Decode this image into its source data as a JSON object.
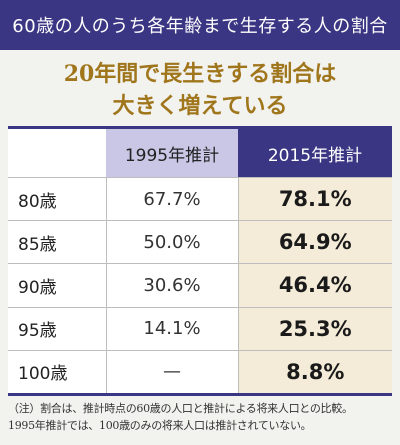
{
  "header": {
    "title": "60歳の人のうち各年齢まで生存する人の割合"
  },
  "headline": {
    "line1": "20年間で長生きする割合は",
    "line2": "大きく増えている"
  },
  "colors": {
    "header_bg": "#3b3683",
    "col1995_bg": "#c9c6e6",
    "col2015_bg": "#3b3683",
    "highlight_bg": "#f4ecd8",
    "headline_text": "#a0761c"
  },
  "chart_data": {
    "type": "table",
    "columns": [
      "",
      "1995年推計",
      "2015年推計"
    ],
    "rows": [
      {
        "age": "80歳",
        "y1995": "67.7%",
        "y2015": "78.1%"
      },
      {
        "age": "85歳",
        "y1995": "50.0%",
        "y2015": "64.9%"
      },
      {
        "age": "90歳",
        "y1995": "30.6%",
        "y2015": "46.4%"
      },
      {
        "age": "95歳",
        "y1995": "14.1%",
        "y2015": "25.3%"
      },
      {
        "age": "100歳",
        "y1995": "—",
        "y2015": "8.8%"
      }
    ]
  },
  "note": {
    "line1": "（注）割合は、推計時点の60歳の人口と推計による将来人口との比較。",
    "line2": "1995年推計では、100歳のみの将来人口は推計されていない。"
  }
}
